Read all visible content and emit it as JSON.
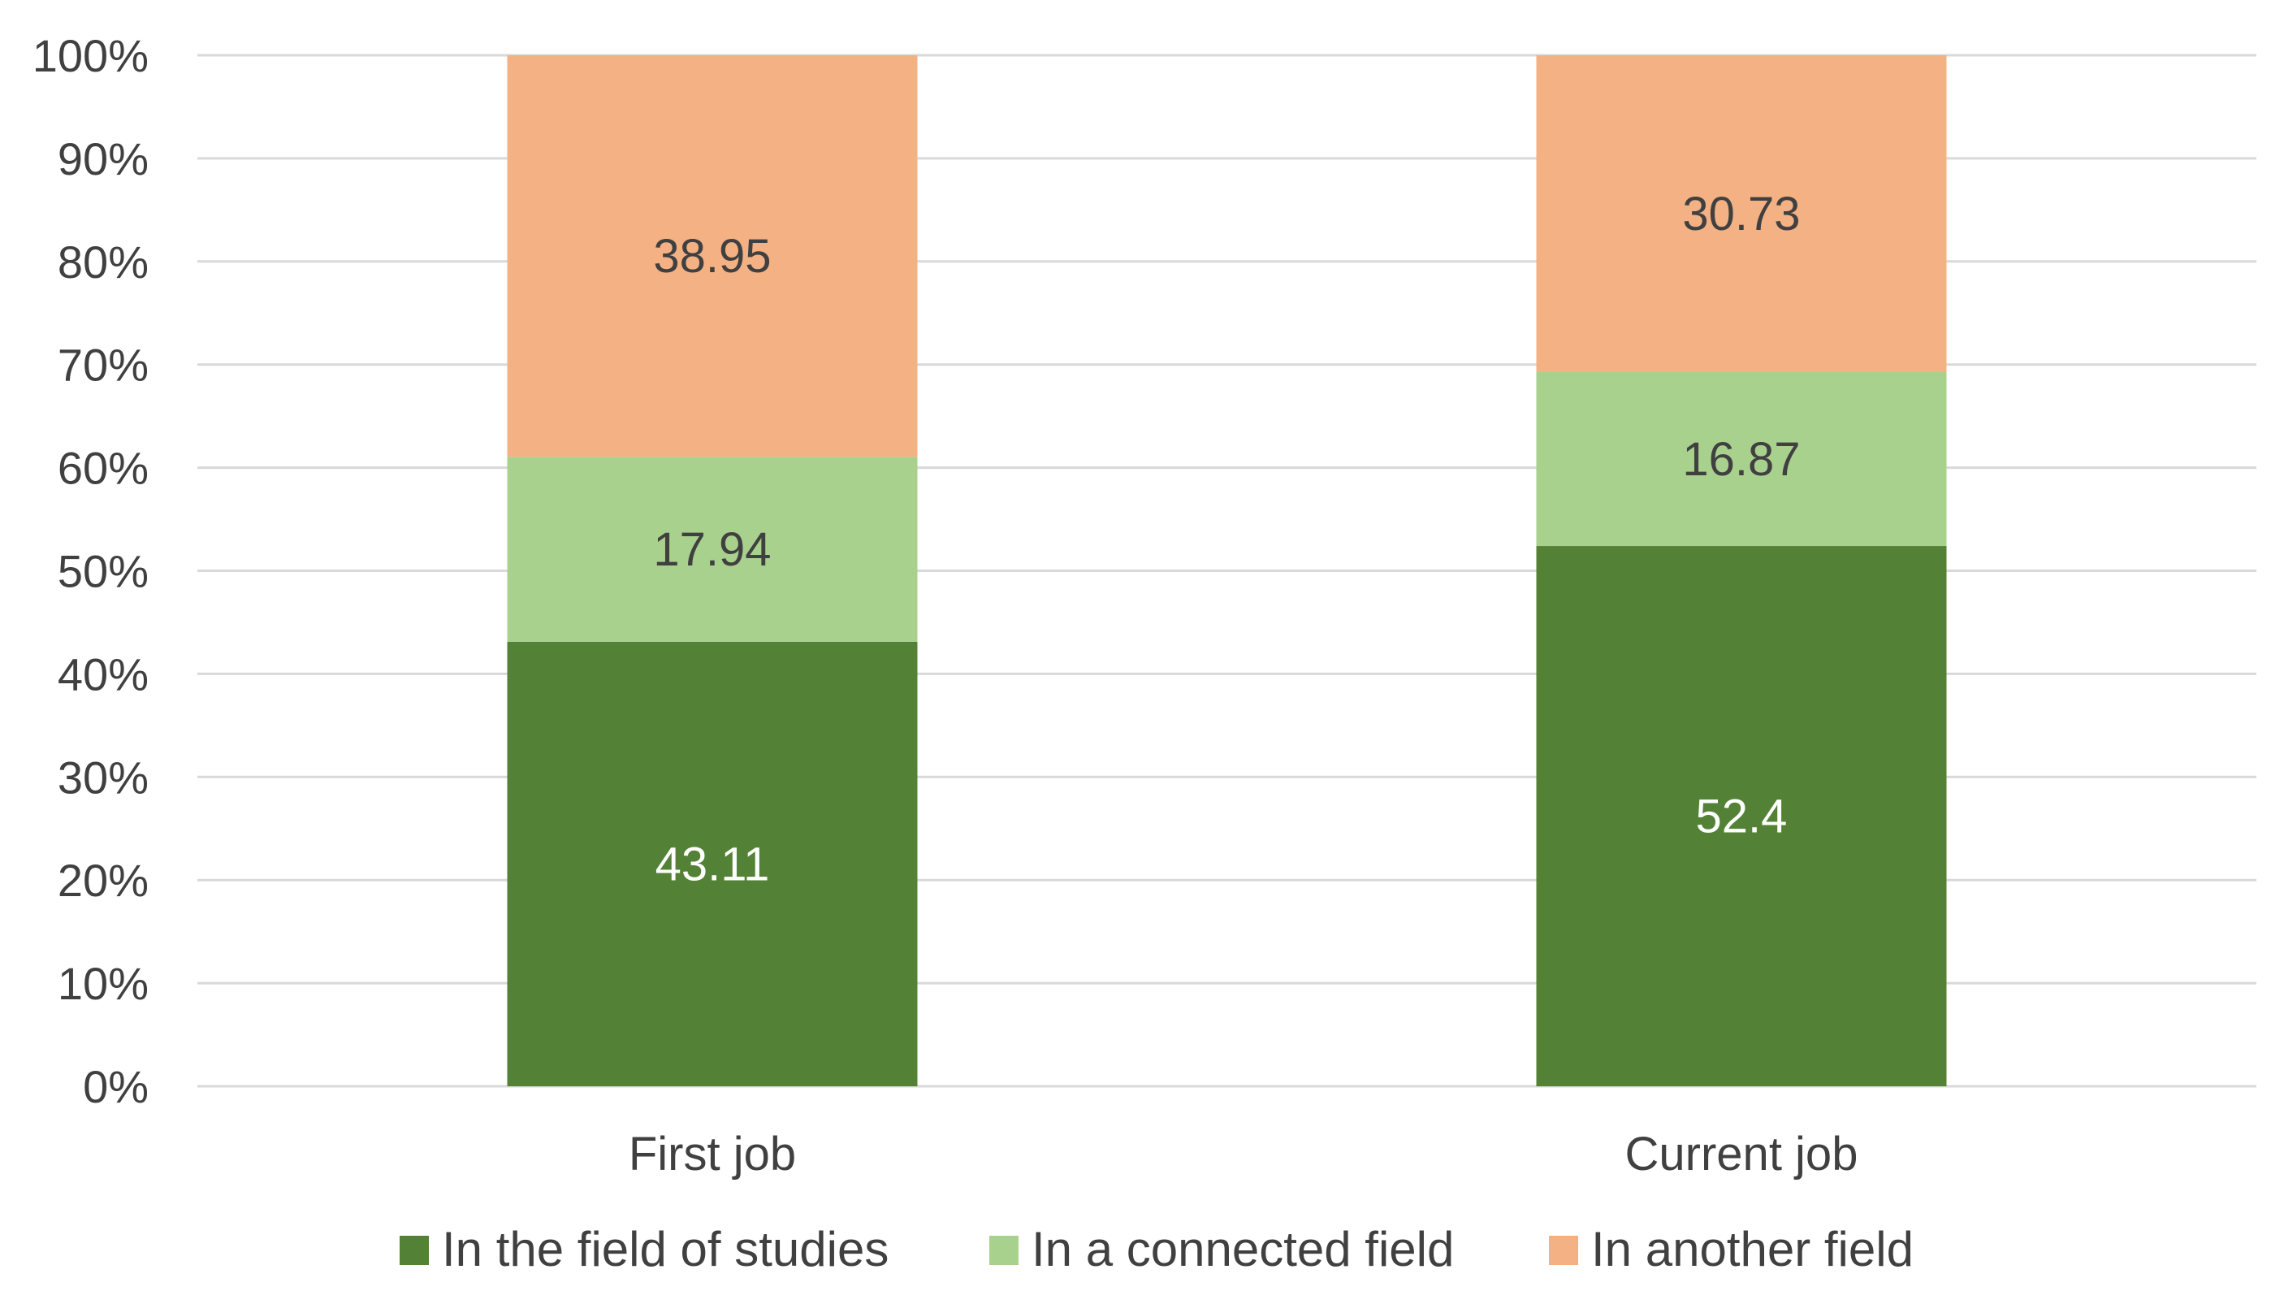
{
  "chart_data": {
    "type": "bar",
    "stacked": "percent",
    "title": "",
    "xlabel": "",
    "ylabel": "",
    "ylim": [
      0,
      100
    ],
    "yticks": [
      "0%",
      "10%",
      "20%",
      "30%",
      "40%",
      "50%",
      "60%",
      "70%",
      "80%",
      "90%",
      "100%"
    ],
    "categories": [
      "First job",
      "Current job"
    ],
    "series": [
      {
        "name": "In the field of studies",
        "values": [
          43.11,
          52.4
        ],
        "color": "#538135",
        "label_color": "#ffffff"
      },
      {
        "name": "In a connected field",
        "values": [
          17.94,
          16.87
        ],
        "color": "#a9d18e",
        "label_color": "#404040"
      },
      {
        "name": "In another field",
        "values": [
          38.95,
          30.73
        ],
        "color": "#f4b183",
        "label_color": "#404040"
      }
    ],
    "data_labels": [
      [
        "43.11",
        "52.4"
      ],
      [
        "17.94",
        "16.87"
      ],
      [
        "38.95",
        "30.73"
      ]
    ],
    "grid": true,
    "legend_position": "bottom",
    "gridline_color": "#d9d9d9"
  }
}
